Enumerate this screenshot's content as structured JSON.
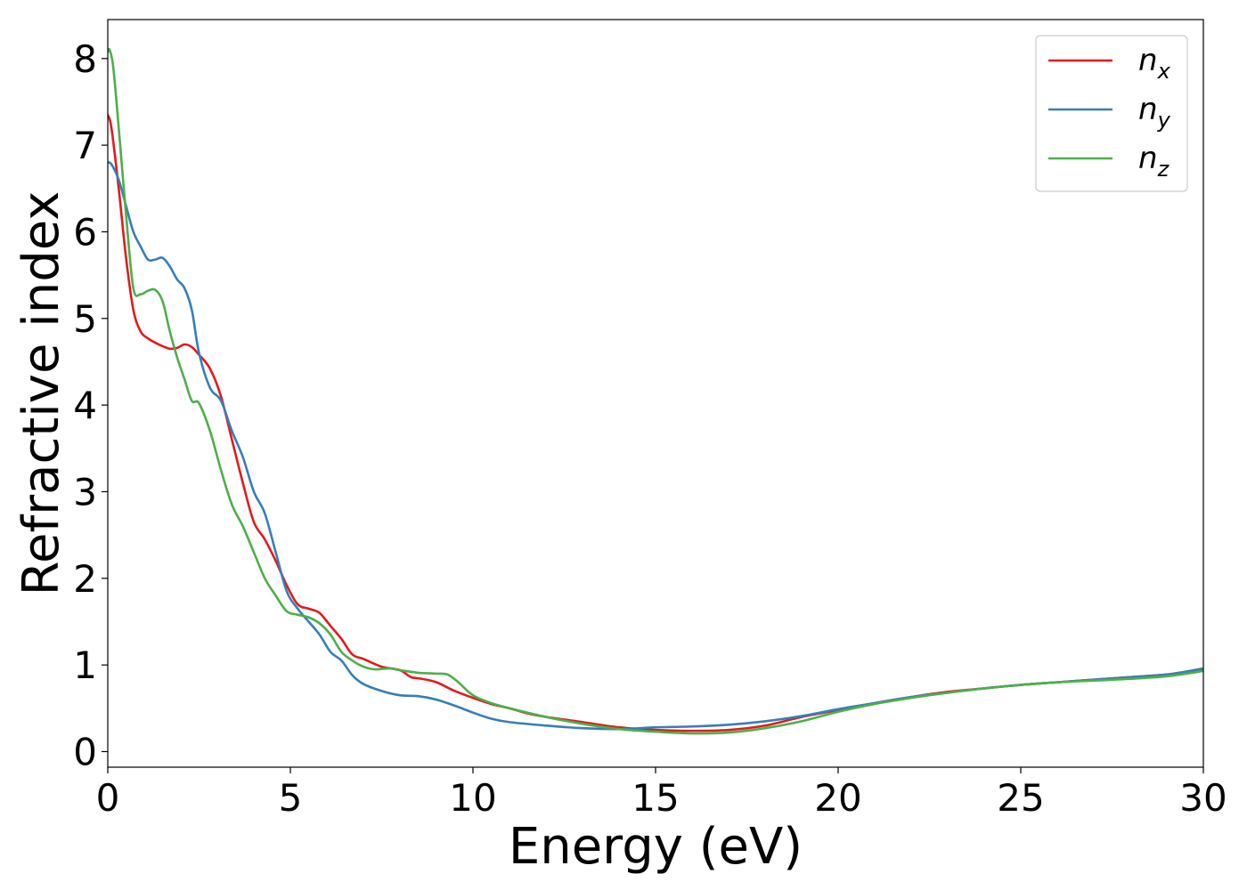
{
  "chart_data": {
    "type": "line",
    "xlabel": "Energy (eV)",
    "ylabel": "Refractive index",
    "xlim": [
      0,
      30
    ],
    "ylim": [
      -0.18,
      8.45
    ],
    "xticks": [
      0,
      5,
      10,
      15,
      20,
      25,
      30
    ],
    "yticks": [
      0,
      1,
      2,
      3,
      4,
      5,
      6,
      7,
      8
    ],
    "grid": false,
    "legend_position": "top-right",
    "series": [
      {
        "name": "n_x",
        "label_main": "n",
        "label_sub": "x",
        "color": "#e41a1c",
        "x": [
          0,
          0.1,
          0.3,
          0.5,
          0.7,
          0.9,
          1.1,
          1.3,
          1.5,
          1.7,
          1.9,
          2.1,
          2.3,
          2.5,
          2.8,
          3.1,
          3.4,
          3.7,
          4.0,
          4.3,
          4.6,
          4.9,
          5.2,
          5.5,
          5.8,
          6.1,
          6.4,
          6.7,
          7.0,
          7.5,
          8.0,
          8.3,
          8.6,
          9.0,
          9.5,
          10.0,
          10.5,
          11.0,
          11.5,
          12.0,
          13.0,
          14.0,
          15.0,
          16.0,
          17.0,
          18.0,
          19.0,
          20.0,
          21.0,
          22.0,
          23.0,
          24.0,
          25.0,
          26.0,
          27.0,
          28.0,
          29.0,
          30.0
        ],
        "y": [
          7.35,
          7.2,
          6.5,
          5.7,
          5.1,
          4.85,
          4.77,
          4.72,
          4.68,
          4.65,
          4.66,
          4.7,
          4.67,
          4.58,
          4.42,
          4.1,
          3.6,
          3.1,
          2.65,
          2.45,
          2.2,
          1.92,
          1.7,
          1.65,
          1.6,
          1.45,
          1.3,
          1.12,
          1.07,
          0.98,
          0.94,
          0.86,
          0.84,
          0.8,
          0.7,
          0.62,
          0.55,
          0.5,
          0.44,
          0.4,
          0.34,
          0.28,
          0.25,
          0.24,
          0.25,
          0.3,
          0.4,
          0.48,
          0.56,
          0.63,
          0.69,
          0.73,
          0.77,
          0.8,
          0.83,
          0.86,
          0.89,
          0.95
        ]
      },
      {
        "name": "n_y",
        "label_main": "n",
        "label_sub": "y",
        "color": "#377eb8",
        "x": [
          0,
          0.1,
          0.3,
          0.5,
          0.7,
          0.9,
          1.1,
          1.3,
          1.5,
          1.7,
          1.9,
          2.1,
          2.3,
          2.5,
          2.8,
          3.1,
          3.4,
          3.7,
          4.0,
          4.3,
          4.6,
          4.9,
          5.2,
          5.5,
          5.8,
          6.1,
          6.4,
          6.7,
          7.0,
          7.5,
          8.0,
          8.5,
          9.0,
          9.5,
          10.0,
          10.5,
          11.0,
          12.0,
          13.0,
          14.0,
          15.0,
          16.0,
          17.0,
          18.0,
          19.0,
          20.0,
          21.0,
          22.0,
          23.0,
          24.0,
          25.0,
          26.0,
          27.0,
          28.0,
          29.0,
          30.0
        ],
        "y": [
          6.8,
          6.78,
          6.6,
          6.3,
          6.0,
          5.83,
          5.68,
          5.68,
          5.7,
          5.6,
          5.45,
          5.35,
          5.1,
          4.6,
          4.2,
          4.05,
          3.7,
          3.4,
          3.0,
          2.75,
          2.3,
          1.85,
          1.65,
          1.5,
          1.35,
          1.15,
          1.05,
          0.88,
          0.78,
          0.7,
          0.65,
          0.64,
          0.6,
          0.53,
          0.45,
          0.38,
          0.34,
          0.3,
          0.27,
          0.26,
          0.28,
          0.29,
          0.31,
          0.35,
          0.41,
          0.49,
          0.56,
          0.63,
          0.68,
          0.73,
          0.77,
          0.8,
          0.83,
          0.86,
          0.89,
          0.96
        ]
      },
      {
        "name": "n_z",
        "label_main": "n",
        "label_sub": "z",
        "color": "#4daf4a",
        "x": [
          0,
          0.05,
          0.15,
          0.3,
          0.5,
          0.7,
          0.9,
          1.1,
          1.3,
          1.5,
          1.7,
          1.9,
          2.1,
          2.3,
          2.5,
          2.8,
          3.1,
          3.4,
          3.7,
          4.0,
          4.3,
          4.6,
          4.9,
          5.2,
          5.5,
          5.8,
          6.1,
          6.4,
          6.7,
          7.0,
          7.3,
          7.7,
          8.0,
          8.5,
          9.0,
          9.3,
          9.6,
          10.0,
          10.5,
          11.0,
          12.0,
          13.0,
          14.0,
          15.0,
          16.0,
          17.0,
          18.0,
          19.0,
          20.0,
          21.0,
          22.0,
          23.0,
          24.0,
          25.0,
          26.0,
          27.0,
          28.0,
          29.0,
          30.0
        ],
        "y": [
          8.08,
          8.1,
          7.9,
          7.2,
          6.2,
          5.35,
          5.28,
          5.32,
          5.33,
          5.2,
          4.85,
          4.55,
          4.3,
          4.05,
          4.02,
          3.7,
          3.25,
          2.85,
          2.6,
          2.3,
          2.0,
          1.8,
          1.62,
          1.58,
          1.55,
          1.48,
          1.35,
          1.15,
          1.05,
          0.98,
          0.95,
          0.96,
          0.94,
          0.91,
          0.9,
          0.89,
          0.8,
          0.65,
          0.56,
          0.5,
          0.4,
          0.32,
          0.26,
          0.23,
          0.21,
          0.22,
          0.27,
          0.35,
          0.46,
          0.55,
          0.62,
          0.68,
          0.73,
          0.77,
          0.8,
          0.82,
          0.84,
          0.87,
          0.93
        ]
      }
    ]
  }
}
